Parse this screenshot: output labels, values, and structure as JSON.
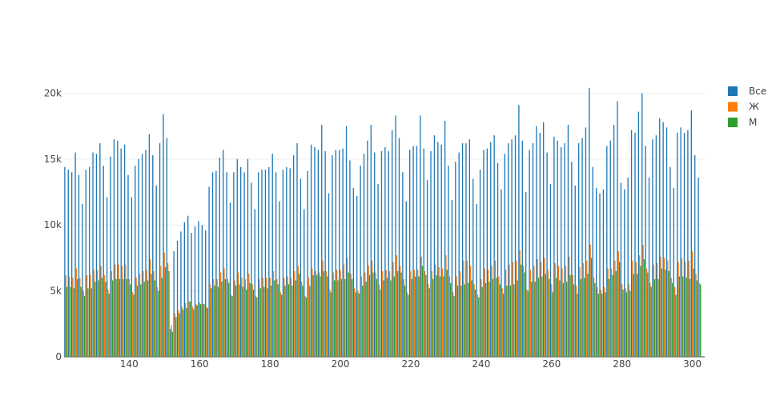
{
  "chart_data": {
    "type": "bar",
    "x_start": 122,
    "x_end": 303,
    "xlim": [
      121.5,
      303.5
    ],
    "ylim": [
      0,
      21000
    ],
    "x_ticks": [
      140,
      160,
      180,
      200,
      220,
      240,
      260,
      280,
      300
    ],
    "x_tick_labels": [
      "140",
      "160",
      "180",
      "200",
      "220",
      "240",
      "260",
      "280",
      "300"
    ],
    "y_ticks": [
      0,
      5000,
      10000,
      15000,
      20000
    ],
    "y_tick_labels": [
      "0",
      "5k",
      "10k",
      "15k",
      "20k"
    ],
    "grid": true,
    "legend_position": "top-right",
    "series": [
      {
        "name": "Все",
        "color": "#1f77b4",
        "values": [
          14400,
          14200,
          14000,
          15500,
          13800,
          11600,
          14200,
          14400,
          15500,
          15400,
          16200,
          14500,
          12100,
          15200,
          16500,
          16400,
          15800,
          16100,
          13800,
          12100,
          14500,
          15000,
          15400,
          15700,
          16900,
          15300,
          13000,
          16200,
          18400,
          16600,
          2100,
          8000,
          8800,
          9500,
          10200,
          10700,
          9400,
          9900,
          10300,
          10000,
          9600,
          12900,
          14000,
          14100,
          15100,
          15700,
          14000,
          11700,
          14000,
          15000,
          14400,
          14000,
          15000,
          13200,
          11200,
          14000,
          14200,
          14200,
          14400,
          15400,
          14000,
          11800,
          14200,
          14400,
          14300,
          15300,
          16200,
          13500,
          11200,
          14100,
          16100,
          15900,
          15700,
          17600,
          15600,
          12400,
          15300,
          15700,
          15700,
          15800,
          17500,
          14900,
          12800,
          12200,
          14500,
          15400,
          16400,
          17600,
          15500,
          13100,
          15600,
          15900,
          15600,
          17200,
          18300,
          16600,
          14000,
          11800,
          15700,
          16000,
          16000,
          18300,
          15800,
          13400,
          15600,
          16800,
          16300,
          16100,
          17900,
          14500,
          11900,
          14800,
          15500,
          16200,
          16200,
          16500,
          13500,
          11600,
          14200,
          15700,
          15800,
          16300,
          16800,
          14700,
          12700,
          15400,
          16200,
          16500,
          16800,
          19100,
          16400,
          12500,
          15700,
          16200,
          17500,
          17000,
          17800,
          15500,
          13100,
          16700,
          16400,
          15900,
          16200,
          17600,
          14800,
          13000,
          16200,
          16600,
          17400,
          20400,
          14400,
          12800,
          12400,
          12700,
          16000,
          16400,
          17600,
          19400,
          13200,
          12700,
          13600,
          17200,
          17000,
          18600,
          20000,
          16000,
          13600,
          16500,
          16800,
          18100,
          17800,
          17400,
          14400,
          12800,
          17000,
          17400,
          17000,
          17200,
          18700,
          15300,
          13600
        ]
      },
      {
        "name": "Ж",
        "color": "#ff7f0e",
        "values": [
          6200,
          6100,
          6000,
          6700,
          6000,
          5000,
          6200,
          6200,
          6600,
          6600,
          6900,
          6200,
          5100,
          6500,
          7000,
          7000,
          6900,
          7000,
          5900,
          4900,
          6000,
          6300,
          6500,
          6600,
          7400,
          6500,
          5300,
          6900,
          7900,
          7100,
          2400,
          3300,
          3500,
          3800,
          4100,
          4200,
          3800,
          4000,
          4100,
          4000,
          3800,
          5500,
          5900,
          5900,
          6400,
          6700,
          5900,
          4700,
          5800,
          6400,
          6000,
          5900,
          6300,
          5500,
          4600,
          5900,
          6000,
          6000,
          6000,
          6500,
          5900,
          4900,
          6000,
          6100,
          6000,
          6500,
          6900,
          5700,
          4600,
          6000,
          6700,
          6500,
          6400,
          7300,
          6500,
          5100,
          6400,
          6600,
          6600,
          7000,
          7500,
          6300,
          5200,
          5000,
          6100,
          6400,
          6900,
          7300,
          6400,
          5500,
          6500,
          6600,
          6500,
          7200,
          7700,
          6900,
          5900,
          4900,
          6500,
          6600,
          6600,
          7600,
          6500,
          5500,
          6500,
          7000,
          6800,
          6700,
          7700,
          6100,
          4900,
          6100,
          6500,
          7300,
          7300,
          6900,
          5500,
          4700,
          5900,
          6700,
          6600,
          6900,
          7300,
          6100,
          5200,
          6600,
          7000,
          7200,
          7300,
          8100,
          6900,
          5100,
          6600,
          6900,
          7400,
          7200,
          7500,
          6600,
          5500,
          7100,
          6900,
          6700,
          6900,
          7600,
          6200,
          5400,
          6800,
          7100,
          7300,
          8500,
          6000,
          5300,
          5100,
          5300,
          6700,
          6700,
          7300,
          8000,
          5500,
          5200,
          5500,
          7300,
          7200,
          7700,
          8500,
          6700,
          5600,
          7000,
          7100,
          7600,
          7500,
          7300,
          6000,
          5300,
          7200,
          7500,
          7200,
          7300,
          8000,
          6300,
          5600
        ]
      },
      {
        "name": "М",
        "color": "#2ca02c",
        "values": [
          5300,
          5300,
          5200,
          5900,
          5300,
          4600,
          5200,
          5200,
          5700,
          5800,
          6000,
          5700,
          4800,
          5800,
          5900,
          5900,
          5900,
          5900,
          5500,
          4700,
          5400,
          5500,
          5700,
          5800,
          6300,
          5800,
          5000,
          6000,
          6800,
          6500,
          1900,
          3000,
          3300,
          3600,
          3700,
          4200,
          3600,
          3900,
          4000,
          4000,
          3700,
          5200,
          5400,
          5300,
          5700,
          5900,
          5600,
          4600,
          5400,
          5500,
          5300,
          5100,
          5600,
          5100,
          4500,
          5200,
          5300,
          5200,
          5400,
          5800,
          5500,
          4700,
          5400,
          5500,
          5400,
          5800,
          6300,
          5400,
          4500,
          5400,
          6200,
          6200,
          6100,
          6500,
          6100,
          4900,
          5800,
          5800,
          5900,
          5900,
          6400,
          5900,
          4900,
          4800,
          5400,
          5700,
          6200,
          6400,
          5900,
          5100,
          5800,
          6000,
          5800,
          6100,
          6500,
          6400,
          5400,
          4700,
          5900,
          6100,
          6100,
          6900,
          6200,
          5200,
          5900,
          6200,
          6100,
          6100,
          6600,
          5600,
          4600,
          5400,
          5400,
          5500,
          5600,
          5800,
          5100,
          4500,
          5300,
          5600,
          5700,
          5900,
          6000,
          5500,
          4800,
          5400,
          5400,
          5500,
          5800,
          7000,
          6400,
          5000,
          5700,
          5700,
          6000,
          6100,
          6300,
          5900,
          4900,
          6000,
          5800,
          5600,
          5700,
          6200,
          5500,
          4800,
          5900,
          6000,
          6300,
          7500,
          5600,
          4800,
          4800,
          4900,
          5900,
          6200,
          6500,
          7200,
          5100,
          4900,
          5000,
          6300,
          6300,
          6900,
          7400,
          6400,
          5300,
          5900,
          5900,
          6700,
          6600,
          6500,
          5600,
          4700,
          6100,
          6100,
          6000,
          5900,
          6700,
          5800,
          5500
        ]
      }
    ]
  }
}
